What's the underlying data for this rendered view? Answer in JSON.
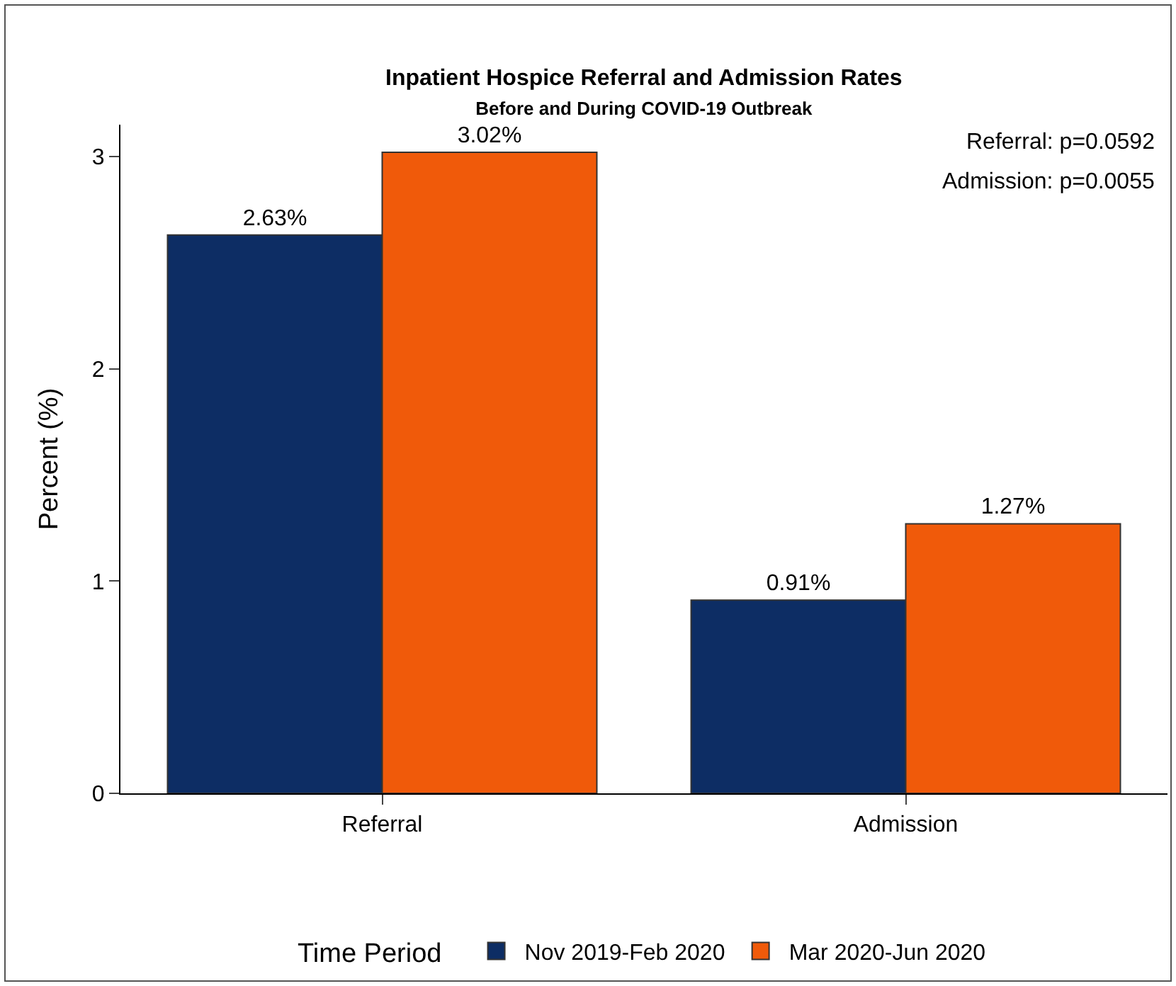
{
  "chart_data": {
    "type": "bar",
    "title": "Inpatient Hospice Referral and Admission Rates",
    "subtitle": "Before and During COVID-19 Outbreak",
    "ylabel": "Percent (%)",
    "legend_title": "Time Period",
    "categories": [
      "Referral",
      "Admission"
    ],
    "series": [
      {
        "name": "Nov 2019-Feb 2020",
        "color": "#0d2d64",
        "values": [
          2.63,
          0.91
        ],
        "value_labels": [
          "2.63%",
          "0.91%"
        ]
      },
      {
        "name": "Mar 2020-Jun 2020",
        "color": "#f05a0a",
        "values": [
          3.02,
          1.27
        ],
        "value_labels": [
          "3.02%",
          "1.27%"
        ]
      }
    ],
    "ylim": [
      0,
      3.15
    ],
    "yticks": [
      0,
      1,
      2,
      3
    ],
    "grid": false,
    "legend": "bottom",
    "annotations": [
      "Referral: p=0.0592",
      "Admission: p=0.0055"
    ]
  }
}
